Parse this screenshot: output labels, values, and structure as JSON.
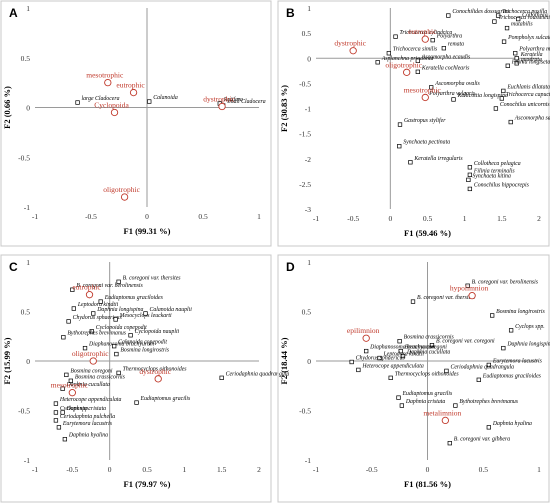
{
  "colors": {
    "species": "#000000",
    "factor": "#c0392b",
    "axis": "#9a9a9a",
    "frame": "#c8c8c8"
  },
  "chart_data": [
    {
      "panel_label": "A",
      "type": "scatter",
      "xlabel": "F1 (99.31 %)",
      "ylabel": "F2 (0.66 %)",
      "xlim": [
        -1,
        1
      ],
      "ylim": [
        -1,
        1
      ],
      "xticks": [
        "-1",
        "-0.5",
        "0",
        "0.5",
        "1"
      ],
      "yticks": [
        "-1",
        "-0.5",
        "0",
        "0.5",
        "1"
      ],
      "grid": false,
      "species": [
        {
          "label": "large Cladocera",
          "x": -0.62,
          "y": 0.05
        },
        {
          "label": "Calanoida",
          "x": 0.02,
          "y": 0.06
        },
        {
          "label": "Rotifera",
          "x": 0.65,
          "y": 0.04
        },
        {
          "label": "small Cladocera",
          "x": 0.68,
          "y": 0.02
        }
      ],
      "factors": [
        {
          "label": "mesotrophic",
          "x": -0.35,
          "y": 0.25
        },
        {
          "label": "eutrophic",
          "x": -0.12,
          "y": 0.15
        },
        {
          "label": "dystrophic",
          "x": 0.67,
          "y": 0.01
        },
        {
          "label": "Cyclopoida",
          "x": -0.29,
          "y": -0.05
        },
        {
          "label": "oligotrophic",
          "x": -0.2,
          "y": -0.9
        }
      ]
    },
    {
      "panel_label": "B",
      "type": "scatter",
      "xlabel": "F1 (59.46 %)",
      "ylabel": "F2 (30.83 %)",
      "xlim": [
        -1,
        2
      ],
      "ylim": [
        -3,
        1
      ],
      "xticks": [
        "-1",
        "-0.5",
        "0",
        "0.5",
        "1",
        "1.5",
        "2"
      ],
      "yticks": [
        "-3",
        "-2.5",
        "-2",
        "-1.5",
        "-1",
        "-0.5",
        "0",
        "0.5",
        "1"
      ],
      "grid": false,
      "species": [
        {
          "label": "Trichocerca pusilla",
          "x": 1.45,
          "y": 0.85
        },
        {
          "label": "Trichocerca rousseleti",
          "x": 1.4,
          "y": 0.73
        },
        {
          "label": "Conochilides dossuarius",
          "x": 0.78,
          "y": 0.85
        },
        {
          "label": "Collotheca",
          "x": 1.72,
          "y": 0.78
        },
        {
          "label": "mutabilis",
          "x": 1.57,
          "y": 0.6
        },
        {
          "label": "Trichocerca cylindrica",
          "x": 0.07,
          "y": 0.43
        },
        {
          "label": "Polyarthra",
          "x": 0.57,
          "y": 0.36
        },
        {
          "label": "remata",
          "x": 0.72,
          "y": 0.2
        },
        {
          "label": "Pompholyx sulcata",
          "x": 1.53,
          "y": 0.33
        },
        {
          "label": "Trichocerca similis",
          "x": -0.02,
          "y": 0.1
        },
        {
          "label": "Polyarthra major",
          "x": 1.68,
          "y": 0.1
        },
        {
          "label": "Keratella",
          "x": 1.7,
          "y": 0.0
        },
        {
          "label": "quadrata",
          "x": 1.7,
          "y": -0.1
        },
        {
          "label": "Asplanchna priodonta",
          "x": -0.17,
          "y": -0.08
        },
        {
          "label": "Ascomorpha ecaudis",
          "x": 0.37,
          "y": -0.05
        },
        {
          "label": "Keratella cochlearis",
          "x": 0.37,
          "y": -0.27
        },
        {
          "label": "Filinia longiseta",
          "x": 1.58,
          "y": -0.15
        },
        {
          "label": "Ascomorpha ovalis",
          "x": 0.55,
          "y": -0.58
        },
        {
          "label": "Euchlanis dilatata",
          "x": 1.52,
          "y": -0.65
        },
        {
          "label": "Polyarthra vulgaris",
          "x": 0.47,
          "y": -0.78
        },
        {
          "label": "Trichocerca capucina",
          "x": 1.5,
          "y": -0.8
        },
        {
          "label": "Kellicottia longispina",
          "x": 0.85,
          "y": -0.82
        },
        {
          "label": "Conochilus unicornis",
          "x": 1.42,
          "y": -1.0
        },
        {
          "label": "Ascomorpha saltans",
          "x": 1.62,
          "y": -1.27
        },
        {
          "label": "Gastropus stylifer",
          "x": 0.13,
          "y": -1.32
        },
        {
          "label": "Synchaeta pectinata",
          "x": 0.12,
          "y": -1.75
        },
        {
          "label": "Keratella irregularis",
          "x": 0.27,
          "y": -2.07
        },
        {
          "label": "Collotheca pelagica",
          "x": 1.07,
          "y": -2.17
        },
        {
          "label": "Filinia terminalis",
          "x": 1.07,
          "y": -2.32
        },
        {
          "label": "Synchaeta kitina",
          "x": 1.05,
          "y": -2.42
        },
        {
          "label": "Conochilus hippocrepis",
          "x": 1.07,
          "y": -2.6
        }
      ],
      "factors": [
        {
          "label": "eutrophic",
          "x": 0.47,
          "y": 0.38
        },
        {
          "label": "dystrophic",
          "x": -0.5,
          "y": 0.15
        },
        {
          "label": "oligotrophic",
          "x": 0.22,
          "y": -0.28
        },
        {
          "label": "mesotrophic",
          "x": 0.47,
          "y": -0.78
        }
      ]
    },
    {
      "panel_label": "C",
      "type": "scatter",
      "xlabel": "F1 (79.97 %)",
      "ylabel": "F2 (15.99 %)",
      "xlim": [
        -1,
        2
      ],
      "ylim": [
        -1,
        1
      ],
      "xticks": [
        "-1",
        "-0.5",
        "0",
        "0.5",
        "1",
        "1.5",
        "2"
      ],
      "yticks": [
        "-1",
        "-0.5",
        "0",
        "0.5",
        "1"
      ],
      "grid": false,
      "species": [
        {
          "label": "B. coregoni var. thersites",
          "x": 0.12,
          "y": 0.8
        },
        {
          "label": "B. coregoni var. berolinensis",
          "x": -0.5,
          "y": 0.72
        },
        {
          "label": "Eudiaptomus graciloides",
          "x": -0.12,
          "y": 0.6
        },
        {
          "label": "Leptodora kindtii",
          "x": -0.48,
          "y": 0.53
        },
        {
          "label": "Daphnia longispina",
          "x": -0.22,
          "y": 0.48
        },
        {
          "label": "Chydorus sphaericus",
          "x": -0.55,
          "y": 0.4
        },
        {
          "label": "Mesocyclops leuckarti",
          "x": 0.08,
          "y": 0.42
        },
        {
          "label": "Calanoida nauplii",
          "x": 0.48,
          "y": 0.48
        },
        {
          "label": "Cyclopoida copepodit",
          "x": -0.24,
          "y": 0.3
        },
        {
          "label": "Bythotrephes brevimanus",
          "x": -0.62,
          "y": 0.24
        },
        {
          "label": "Cyclopoida nauplii",
          "x": 0.28,
          "y": 0.26
        },
        {
          "label": "Diaphanosoma brachyurum",
          "x": -0.33,
          "y": 0.13
        },
        {
          "label": "Calanoida copepodit",
          "x": 0.06,
          "y": 0.15
        },
        {
          "label": "Bosmina longirostris",
          "x": 0.09,
          "y": 0.07
        },
        {
          "label": "Thermocyclops oithonoides",
          "x": 0.12,
          "y": -0.12
        },
        {
          "label": "Ceriodaphnia quadrangula",
          "x": 1.5,
          "y": -0.17
        },
        {
          "label": "Bosmina coregoni",
          "x": -0.58,
          "y": -0.14
        },
        {
          "label": "Bosmina crassicornis",
          "x": -0.52,
          "y": -0.2
        },
        {
          "label": "Daphnia cucullata",
          "x": -0.63,
          "y": -0.28
        },
        {
          "label": "Eudiaptomus gracilis",
          "x": 0.36,
          "y": -0.42
        },
        {
          "label": "Heterocope appendiculata",
          "x": -0.72,
          "y": -0.43
        },
        {
          "label": "Cyclops spp.",
          "x": -0.72,
          "y": -0.52
        },
        {
          "label": "Daphnia cristata",
          "x": -0.63,
          "y": -0.52
        },
        {
          "label": "Ceriodaphnia pulchella",
          "x": -0.72,
          "y": -0.6
        },
        {
          "label": "Eurytemora lacustris",
          "x": -0.68,
          "y": -0.67
        },
        {
          "label": "Daphnia hyalina",
          "x": -0.6,
          "y": -0.79
        }
      ],
      "factors": [
        {
          "label": "eutrophic",
          "x": -0.27,
          "y": 0.67
        },
        {
          "label": "oligotrophic",
          "x": -0.22,
          "y": 0.0
        },
        {
          "label": "mesotrophic",
          "x": -0.5,
          "y": -0.32
        },
        {
          "label": "dystrophic",
          "x": 0.65,
          "y": -0.18
        }
      ]
    },
    {
      "panel_label": "D",
      "type": "scatter",
      "xlabel": "F1 (81.56 %)",
      "ylabel": "F2 (18.44 %)",
      "xlim": [
        -1,
        1
      ],
      "ylim": [
        -1,
        1
      ],
      "xticks": [
        "-1",
        "-0.5",
        "0",
        "0.5",
        "1"
      ],
      "yticks": [
        "-1",
        "-0.5",
        "0",
        "0.5",
        "1"
      ],
      "grid": false,
      "species": [
        {
          "label": "B. coregoni var. berolinensis",
          "x": 0.36,
          "y": 0.76
        },
        {
          "label": "B. coregoni var. thersites",
          "x": -0.13,
          "y": 0.6
        },
        {
          "label": "Bosmina longirostris",
          "x": 0.58,
          "y": 0.46
        },
        {
          "label": "Cyclops spp.",
          "x": 0.75,
          "y": 0.31
        },
        {
          "label": "Bosmina crassicornis",
          "x": -0.25,
          "y": 0.2
        },
        {
          "label": "B. coregoni var. coregoni",
          "x": 0.04,
          "y": 0.16
        },
        {
          "label": "Daphnia longispina",
          "x": 0.68,
          "y": 0.13
        },
        {
          "label": "Bosmina coregoni",
          "x": -0.24,
          "y": 0.1
        },
        {
          "label": "Diaphanosoma brachyurum",
          "x": -0.55,
          "y": 0.1
        },
        {
          "label": "Daphnia cucullata",
          "x": -0.22,
          "y": 0.05
        },
        {
          "label": "Leptodora kindtii",
          "x": -0.43,
          "y": 0.03
        },
        {
          "label": "Chydorus sphaericus",
          "x": -0.68,
          "y": -0.01
        },
        {
          "label": "Eurytemora lacustris",
          "x": 0.55,
          "y": -0.04
        },
        {
          "label": "Heterocope appendiculata",
          "x": -0.62,
          "y": -0.09
        },
        {
          "label": "Ceriodaphnia quadrangula",
          "x": 0.17,
          "y": -0.1
        },
        {
          "label": "Thermocyclops oithonoides",
          "x": -0.33,
          "y": -0.17
        },
        {
          "label": "Eudiaptomus graciloides",
          "x": 0.46,
          "y": -0.19
        },
        {
          "label": "Eudiaptomus gracilis",
          "x": -0.26,
          "y": -0.37
        },
        {
          "label": "Daphnia cristata",
          "x": -0.23,
          "y": -0.45
        },
        {
          "label": "Bythotrephes brevimanus",
          "x": 0.25,
          "y": -0.45
        },
        {
          "label": "Daphnia hyalina",
          "x": 0.55,
          "y": -0.67
        },
        {
          "label": "B. coregoni var. gibbera",
          "x": 0.2,
          "y": -0.83
        }
      ],
      "factors": [
        {
          "label": "hypolimnion",
          "x": 0.4,
          "y": 0.66
        },
        {
          "label": "epilimnion",
          "x": -0.55,
          "y": 0.23
        },
        {
          "label": "metalimnion",
          "x": 0.16,
          "y": -0.6
        }
      ]
    }
  ]
}
